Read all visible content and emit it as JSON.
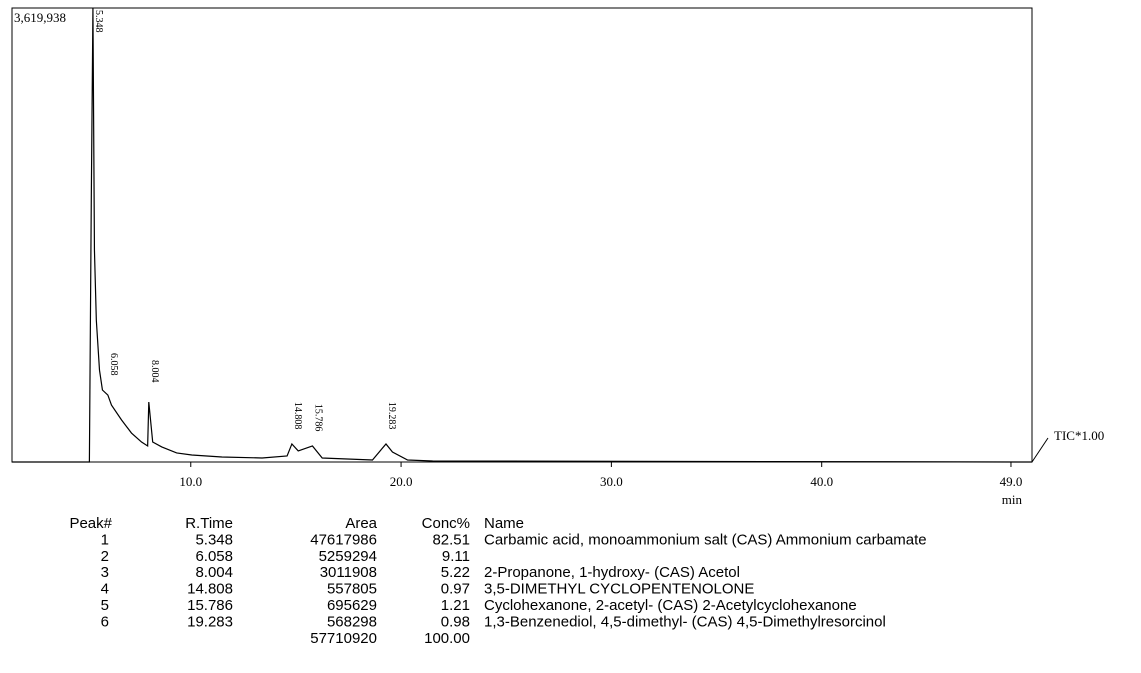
{
  "chart_data": {
    "type": "line",
    "color": "#000000",
    "x": [
      1.5,
      5.04,
      5.18,
      5.27,
      5.348,
      5.42,
      5.51,
      5.66,
      5.8,
      6.058,
      6.23,
      6.71,
      7.18,
      7.66,
      7.95,
      8.004,
      8.19,
      8.62,
      9.33,
      10.05,
      11.48,
      13.39,
      14.58,
      14.808,
      15.11,
      15.786,
      16.25,
      18.64,
      19.283,
      19.59,
      20.31,
      21.5,
      50.0
    ],
    "values": [
      0,
      0,
      0,
      2090000,
      3619938,
      1690000,
      1130000,
      733000,
      574000,
      534000,
      454000,
      335000,
      231000,
      159000,
      128000,
      478000,
      159000,
      120000,
      72000,
      56000,
      40000,
      32000,
      48000,
      144000,
      88000,
      128000,
      32000,
      16000,
      144000,
      80000,
      16000,
      8000,
      0
    ],
    "xlim": [
      1.5,
      50.0
    ],
    "xticks": [
      {
        "value": 10,
        "label": "10.0"
      },
      {
        "value": 20,
        "label": "20.0"
      },
      {
        "value": 30,
        "label": "30.0"
      },
      {
        "value": 40,
        "label": "40.0"
      },
      {
        "value": 49,
        "label": "49.0"
      }
    ],
    "ylim": [
      0,
      3619938
    ],
    "yticks": [
      {
        "value": 3619938,
        "label": "3,619,938"
      }
    ],
    "x_label": "min",
    "trace_label": "TIC*1.00",
    "peaks": [
      5.348,
      6.058,
      8.004,
      14.808,
      15.786,
      19.283
    ]
  },
  "table": {
    "headers": [
      "Peak#",
      "R.Time",
      "Area",
      "Conc%",
      "Name"
    ],
    "rows": [
      [
        "1",
        "5.348",
        "47617986",
        "82.51",
        "Carbamic acid, monoammonium salt (CAS) Ammonium carbamate"
      ],
      [
        "2",
        "6.058",
        "5259294",
        "9.11",
        null
      ],
      [
        "3",
        "8.004",
        "3011908",
        "5.22",
        "2-Propanone, 1-hydroxy- (CAS) Acetol"
      ],
      [
        "4",
        "14.808",
        "557805",
        "0.97",
        "3,5-DIMETHYL CYCLOPENTENOLONE"
      ],
      [
        "5",
        "15.786",
        "695629",
        "1.21",
        "Cyclohexanone, 2-acetyl- (CAS) 2-Acetylcyclohexanone"
      ],
      [
        "6",
        "19.283",
        "568298",
        "0.98",
        "1,3-Benzenediol, 4,5-dimethyl- (CAS) 4,5-Dimethylresorcinol"
      ]
    ],
    "total": [
      "57710920",
      "100.00"
    ]
  }
}
